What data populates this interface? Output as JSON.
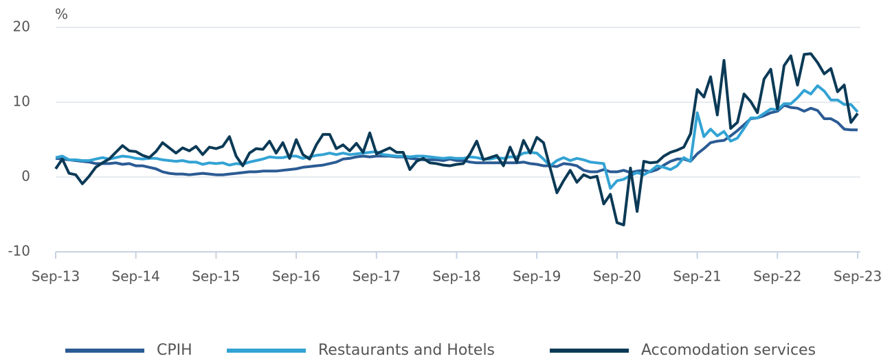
{
  "chart_data": {
    "type": "line",
    "ylabel": "%",
    "categories": [
      "Sep-13",
      null,
      null,
      null,
      null,
      null,
      null,
      null,
      null,
      null,
      null,
      null,
      "Sep-14",
      null,
      null,
      null,
      null,
      null,
      null,
      null,
      null,
      null,
      null,
      null,
      "Sep-15",
      null,
      null,
      null,
      null,
      null,
      null,
      null,
      null,
      null,
      null,
      null,
      "Sep-16",
      null,
      null,
      null,
      null,
      null,
      null,
      null,
      null,
      null,
      null,
      null,
      "Sep-17",
      null,
      null,
      null,
      null,
      null,
      null,
      null,
      null,
      null,
      null,
      null,
      "Sep-18",
      null,
      null,
      null,
      null,
      null,
      null,
      null,
      null,
      null,
      null,
      null,
      "Sep-19",
      null,
      null,
      null,
      null,
      null,
      null,
      null,
      null,
      null,
      null,
      null,
      "Sep-20",
      null,
      null,
      null,
      null,
      null,
      null,
      null,
      null,
      null,
      null,
      null,
      "Sep-21",
      null,
      null,
      null,
      null,
      null,
      null,
      null,
      null,
      null,
      null,
      null,
      "Sep-22",
      null,
      null,
      null,
      null,
      null,
      null,
      null,
      null,
      null,
      null,
      null,
      "Sep-23"
    ],
    "series": [
      {
        "name": "CPIH",
        "color": "#2b5b94",
        "values": [
          2.5,
          2.4,
          2.3,
          2.2,
          2.1,
          2.0,
          1.8,
          1.8,
          1.8,
          1.9,
          1.7,
          1.8,
          1.5,
          1.5,
          1.3,
          1.1,
          0.7,
          0.5,
          0.4,
          0.4,
          0.3,
          0.4,
          0.5,
          0.4,
          0.3,
          0.3,
          0.4,
          0.5,
          0.6,
          0.7,
          0.7,
          0.8,
          0.8,
          0.8,
          0.9,
          1.0,
          1.1,
          1.3,
          1.4,
          1.5,
          1.6,
          1.8,
          2.0,
          2.4,
          2.5,
          2.7,
          2.8,
          2.7,
          2.8,
          2.8,
          2.8,
          2.7,
          2.7,
          2.5,
          2.4,
          2.3,
          2.3,
          2.3,
          2.2,
          2.4,
          2.2,
          2.2,
          2.0,
          1.9,
          1.9,
          1.9,
          1.9,
          1.9,
          1.9,
          1.9,
          2.0,
          1.8,
          1.7,
          1.5,
          1.5,
          1.4,
          1.8,
          1.7,
          1.5,
          0.9,
          0.7,
          0.7,
          1.0,
          0.7,
          0.7,
          0.9,
          0.6,
          0.8,
          0.9,
          0.7,
          1.0,
          1.6,
          2.1,
          2.4,
          2.4,
          2.1,
          3.1,
          3.8,
          4.6,
          4.8,
          4.9,
          5.5,
          6.2,
          7.0,
          7.8,
          7.9,
          8.2,
          8.6,
          8.8,
          9.6,
          9.3,
          9.2,
          8.8,
          9.2,
          8.9,
          7.8,
          7.8,
          7.3,
          6.4,
          6.3,
          6.3
        ]
      },
      {
        "name": "Restaurants and Hotels",
        "color": "#33a3d4",
        "values": [
          2.6,
          2.8,
          2.3,
          2.3,
          2.2,
          2.2,
          2.4,
          2.6,
          2.4,
          2.6,
          2.8,
          2.7,
          2.5,
          2.4,
          2.5,
          2.5,
          2.3,
          2.2,
          2.1,
          2.2,
          2.0,
          2.0,
          1.7,
          1.9,
          1.8,
          1.9,
          1.6,
          1.8,
          1.7,
          2.0,
          2.2,
          2.4,
          2.7,
          2.6,
          2.6,
          2.8,
          2.8,
          2.5,
          2.7,
          2.9,
          3.0,
          3.2,
          3.0,
          3.2,
          3.0,
          3.1,
          3.2,
          3.3,
          3.4,
          3.0,
          2.9,
          2.8,
          2.8,
          2.7,
          2.8,
          2.8,
          2.7,
          2.6,
          2.5,
          2.6,
          2.5,
          2.5,
          2.7,
          2.6,
          2.4,
          2.4,
          2.6,
          2.5,
          2.7,
          2.7,
          3.2,
          3.3,
          3.2,
          2.4,
          1.5,
          2.2,
          2.6,
          2.2,
          2.5,
          2.3,
          2.0,
          1.9,
          1.8,
          -1.5,
          -0.5,
          -0.3,
          0.2,
          0.6,
          0.3,
          0.8,
          1.5,
          1.3,
          1.0,
          1.5,
          2.6,
          2.1,
          8.6,
          5.4,
          6.4,
          5.5,
          6.1,
          4.8,
          5.2,
          6.5,
          7.9,
          7.9,
          8.5,
          9.1,
          9.0,
          9.8,
          9.8,
          10.6,
          11.6,
          11.1,
          12.2,
          11.5,
          10.3,
          10.3,
          9.7,
          9.7,
          8.7
        ]
      },
      {
        "name": "Accomodation services",
        "color": "#0b3a56",
        "values": [
          1.1,
          2.4,
          0.5,
          0.3,
          -0.9,
          0.1,
          1.3,
          1.9,
          2.4,
          3.3,
          4.2,
          3.5,
          3.4,
          2.9,
          2.6,
          3.4,
          4.6,
          3.9,
          3.2,
          3.9,
          3.5,
          4.1,
          3.0,
          4.0,
          3.8,
          4.1,
          5.4,
          2.8,
          1.5,
          3.2,
          3.8,
          3.7,
          4.8,
          3.2,
          4.6,
          2.5,
          5.0,
          3.0,
          2.4,
          4.3,
          5.7,
          5.7,
          3.8,
          4.3,
          3.5,
          4.5,
          3.3,
          5.9,
          3.1,
          3.5,
          3.9,
          3.3,
          3.3,
          1.0,
          2.1,
          2.5,
          1.9,
          1.8,
          1.6,
          1.5,
          1.7,
          1.8,
          3.1,
          4.8,
          2.3,
          2.6,
          2.9,
          1.5,
          4.0,
          2.0,
          4.9,
          3.2,
          5.3,
          4.6,
          1.2,
          -2.1,
          -0.5,
          0.9,
          -0.7,
          0.3,
          -0.1,
          0.1,
          -3.6,
          -2.3,
          -6.1,
          -6.4,
          1.2,
          -4.6,
          2.1,
          1.9,
          2.0,
          2.8,
          3.3,
          3.6,
          4.0,
          5.8,
          11.7,
          10.7,
          13.4,
          8.3,
          15.6,
          6.5,
          7.3,
          11.1,
          10.1,
          8.6,
          13.1,
          14.4,
          9.1,
          14.9,
          16.2,
          12.3,
          16.4,
          16.5,
          15.3,
          13.8,
          14.5,
          11.4,
          12.3,
          7.3,
          8.5
        ]
      }
    ],
    "ylim": [
      -10,
      20
    ],
    "yticks": [
      -10,
      0,
      10,
      20
    ],
    "grid": true,
    "legend": "bottom"
  }
}
